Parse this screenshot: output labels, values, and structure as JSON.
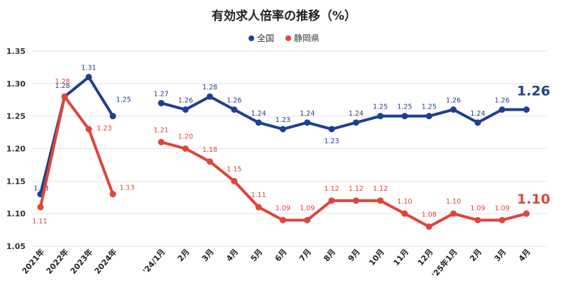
{
  "title": "有効求人倍率の推移（%）",
  "legend": [
    {
      "name": "全国",
      "color": "#1f3f8f"
    },
    {
      "name": "静岡県",
      "color": "#e0443a"
    }
  ],
  "chart_data": {
    "type": "line",
    "title": "有効求人倍率の推移（%）",
    "xlabel": "",
    "ylabel": "",
    "ylim": [
      1.05,
      1.35
    ],
    "yticks": [
      "1.05",
      "1.10",
      "1.15",
      "1.20",
      "1.25",
      "1.30",
      "1.35"
    ],
    "grid": true,
    "legend_position": "top",
    "categories": [
      "2021年",
      "2022年",
      "2023年",
      "2024年",
      "'24/1月",
      "2月",
      "3月",
      "4月",
      "5月",
      "6月",
      "7月",
      "8月",
      "9月",
      "10月",
      "11月",
      "12月",
      "'25年1月",
      "2月",
      "3月",
      "4月"
    ],
    "series": [
      {
        "name": "全国",
        "color": "#1f3f8f",
        "values": [
          1.13,
          1.28,
          1.31,
          1.25,
          1.27,
          1.26,
          1.28,
          1.26,
          1.24,
          1.23,
          1.24,
          1.23,
          1.24,
          1.25,
          1.25,
          1.25,
          1.26,
          1.24,
          1.26,
          1.26
        ],
        "labels": [
          "1.13",
          "1.28",
          "1.31",
          "1.25",
          "1.27",
          "1.26",
          "1.28",
          "1.26",
          "1.24",
          "1.23",
          "1.24",
          "1.23",
          "1.24",
          "1.25",
          "1.25",
          "1.25",
          "1.26",
          "1.24",
          "1.26",
          "1.26"
        ]
      },
      {
        "name": "静岡県",
        "color": "#e0443a",
        "values": [
          1.11,
          1.28,
          1.23,
          1.13,
          1.21,
          1.2,
          1.18,
          1.15,
          1.11,
          1.09,
          1.09,
          1.12,
          1.12,
          1.12,
          1.1,
          1.08,
          1.1,
          1.09,
          1.09,
          1.1
        ],
        "labels": [
          "1.11",
          "1.28",
          "1.23",
          "1.13",
          "1.21",
          "1.20",
          "1.18",
          "1.15",
          "1.11",
          "1.09",
          "1.09",
          "1.12",
          "1.12",
          "1.12",
          "1.10",
          "1.08",
          "1.10",
          "1.09",
          "1.09",
          "1.10"
        ]
      }
    ]
  }
}
